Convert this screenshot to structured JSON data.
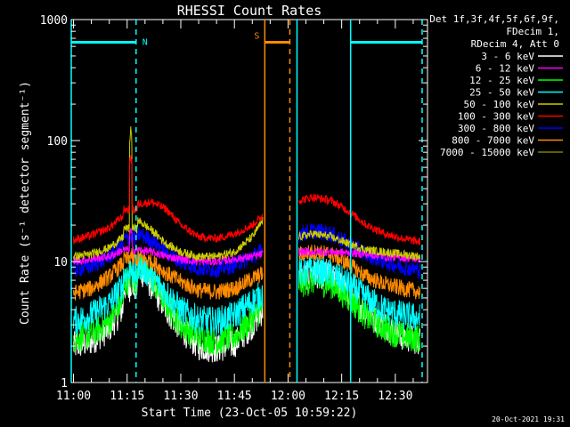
{
  "chart_data": {
    "type": "line",
    "title": "RHESSI Count Rates",
    "xlabel": "Start Time (23-Oct-05 10:59:22)",
    "ylabel": "Count Rate (s⁻¹ detector segment⁻¹)",
    "yscale": "log",
    "ylim": [
      1,
      1000
    ],
    "xlim": [
      "10:59:22",
      "12:39:00"
    ],
    "x_ticks": [
      "11:00",
      "11:15",
      "11:30",
      "11:45",
      "12:00",
      "12:15",
      "12:30"
    ],
    "y_ticks": [
      "1",
      "10",
      "100",
      "1000"
    ],
    "legend_header": [
      "Det 1f,3f,4f,5f,6f,9f,",
      "FDecim 1,",
      "RDecim 4, Att 0"
    ],
    "legend_position": "top-right, outside plot",
    "timestamp": "20-Oct-2021 19:31",
    "annotations": [
      {
        "text": "N",
        "color": "#00ffff",
        "meaning": "night",
        "intervals": [
          [
            "10:59:22",
            "11:17:30"
          ],
          [
            "12:17:30",
            "12:37:30"
          ]
        ],
        "level": 650
      },
      {
        "text": "S",
        "color": "#ff8c00",
        "meaning": "SAA",
        "intervals": [
          [
            "11:53:30",
            "12:00:30"
          ]
        ],
        "level": 650
      }
    ],
    "data_gap": [
      "11:53:30",
      "12:02:30"
    ],
    "vertical_lines": [
      {
        "time": "10:59:22",
        "color": "#00ffff",
        "style": "solid"
      },
      {
        "time": "11:17:30",
        "color": "#00ffff",
        "style": "dashed"
      },
      {
        "time": "11:53:30",
        "color": "#ff8c00",
        "style": "solid"
      },
      {
        "time": "12:00:30",
        "color": "#ff8c00",
        "style": "dashed"
      },
      {
        "time": "12:02:30",
        "color": "#00ffff",
        "style": "solid"
      },
      {
        "time": "12:17:30",
        "color": "#00ffff",
        "style": "solid"
      },
      {
        "time": "12:37:30",
        "color": "#00ffff",
        "style": "dashed"
      }
    ],
    "series_times": [
      "11:00",
      "11:05",
      "11:10",
      "11:14",
      "11:16",
      "11:18",
      "11:22",
      "11:26",
      "11:30",
      "11:35",
      "11:40",
      "11:45",
      "11:50",
      "11:53",
      "12:03",
      "12:07",
      "12:12",
      "12:17",
      "12:22",
      "12:27",
      "12:32",
      "12:37"
    ],
    "series": [
      {
        "name": "3 - 6 keV",
        "color": "#ffffff",
        "values": [
          2.0,
          2.2,
          2.8,
          4.2,
          6.5,
          9.0,
          6.2,
          4.0,
          2.8,
          2.0,
          1.9,
          2.1,
          3.0,
          4.0,
          7.2,
          8.0,
          7.5,
          5.5,
          3.8,
          3.0,
          2.4,
          2.2
        ]
      },
      {
        "name": "6 - 12 keV",
        "color": "#ff00ff",
        "values": [
          10.0,
          10.5,
          11.0,
          12.5,
          18.0,
          12.5,
          12.0,
          11.0,
          10.5,
          10.0,
          10.0,
          10.5,
          11.0,
          11.5,
          12.0,
          12.0,
          12.0,
          11.8,
          11.5,
          11.0,
          10.8,
          10.5
        ]
      },
      {
        "name": "12 - 25 keV",
        "color": "#00ff00",
        "values": [
          2.3,
          2.5,
          3.2,
          4.8,
          8.0,
          10.0,
          7.0,
          4.5,
          3.0,
          2.4,
          2.2,
          2.4,
          3.3,
          4.2,
          6.5,
          7.0,
          6.5,
          5.0,
          3.5,
          2.8,
          2.4,
          2.3
        ]
      },
      {
        "name": "25 - 50 keV",
        "color": "#00ffff",
        "values": [
          3.2,
          3.6,
          4.5,
          6.5,
          9.5,
          9.5,
          7.5,
          5.5,
          4.0,
          3.3,
          3.2,
          3.6,
          4.7,
          5.5,
          8.0,
          8.5,
          8.0,
          6.5,
          5.0,
          4.0,
          3.6,
          3.4
        ]
      },
      {
        "name": "50 - 100 keV",
        "color": "#cccc00",
        "values": [
          11.0,
          11.5,
          13.0,
          16.0,
          130.0,
          22.0,
          18.0,
          14.0,
          12.0,
          11.0,
          11.0,
          12.0,
          16.0,
          22.0,
          16.0,
          17.0,
          16.0,
          14.0,
          12.5,
          12.0,
          11.5,
          11.0
        ]
      },
      {
        "name": "100 - 300 keV",
        "color": "#ff0000",
        "values": [
          15.0,
          16.5,
          19.0,
          24.0,
          75.0,
          30.0,
          31.0,
          27.0,
          20.0,
          16.0,
          15.5,
          17.0,
          20.0,
          24.0,
          32.0,
          34.0,
          32.0,
          26.0,
          20.0,
          17.0,
          15.5,
          14.5
        ]
      },
      {
        "name": "300 - 800 keV",
        "color": "#0000ff",
        "values": [
          8.5,
          9.2,
          11.0,
          14.0,
          16.0,
          17.0,
          15.0,
          12.0,
          10.0,
          8.8,
          8.6,
          9.4,
          11.0,
          12.5,
          17.0,
          18.0,
          17.0,
          14.0,
          11.5,
          10.0,
          9.0,
          8.5
        ]
      },
      {
        "name": "800 - 7000 keV",
        "color": "#ff8c00",
        "values": [
          5.5,
          6.0,
          7.5,
          9.8,
          11.5,
          11.0,
          10.0,
          8.0,
          6.8,
          5.8,
          5.6,
          6.0,
          7.2,
          8.0,
          11.5,
          12.0,
          11.5,
          9.5,
          7.5,
          6.5,
          6.0,
          5.6
        ]
      },
      {
        "name": "7000 - 15000 keV",
        "color": "#808000",
        "values": []
      }
    ]
  }
}
